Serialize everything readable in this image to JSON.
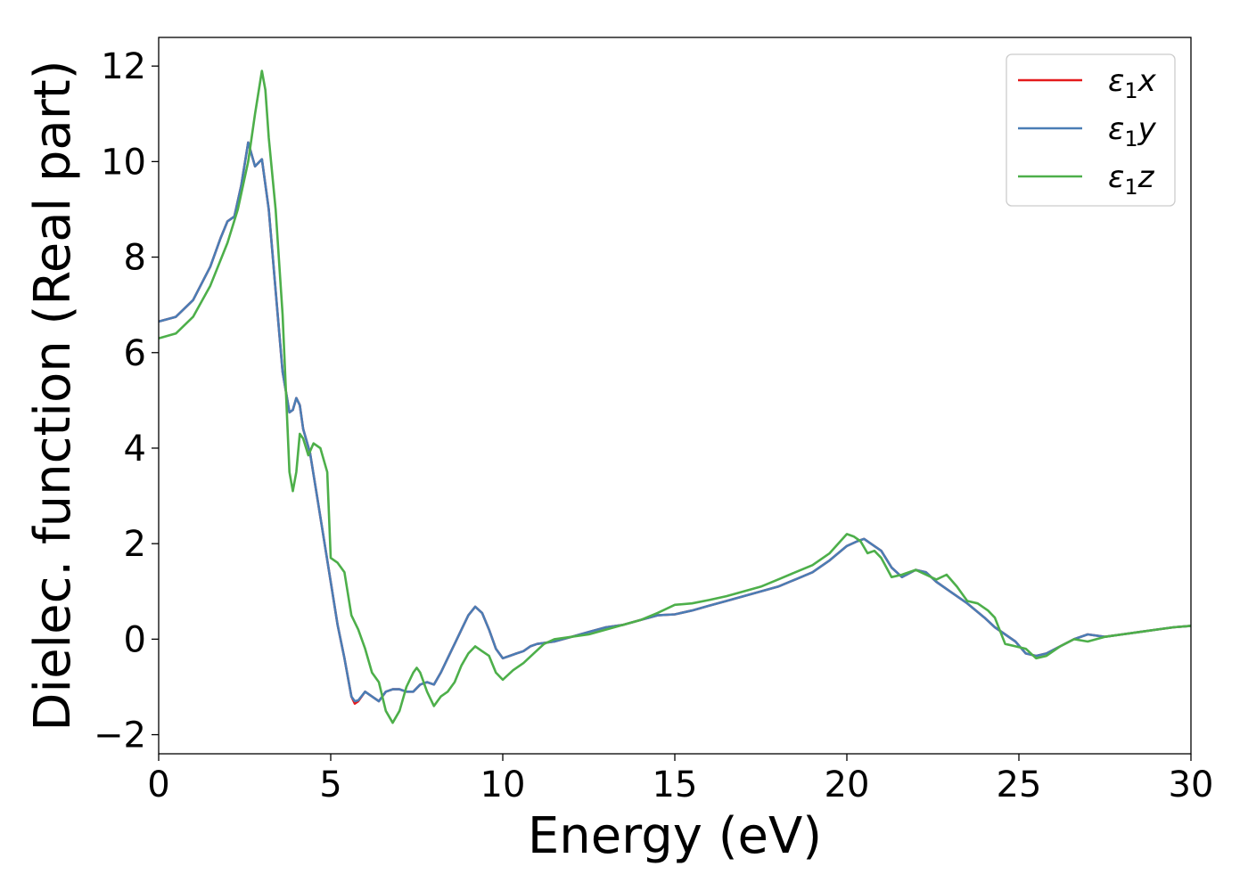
{
  "chart_data": {
    "type": "line",
    "title": "",
    "xlabel": "Energy (eV)",
    "ylabel": "Dielec. function (Real part)",
    "xlim": [
      0,
      30
    ],
    "ylim": [
      -2.4,
      12.6
    ],
    "xticks": [
      0,
      5,
      10,
      15,
      20,
      25,
      30
    ],
    "yticks": [
      -2,
      0,
      2,
      4,
      6,
      8,
      10,
      12
    ],
    "xtick_labels": [
      "0",
      "5",
      "10",
      "15",
      "20",
      "25",
      "30"
    ],
    "ytick_labels": [
      "−2",
      "0",
      "2",
      "4",
      "6",
      "8",
      "10",
      "12"
    ],
    "grid": false,
    "legend_position": "top-right",
    "series": [
      {
        "name": "ε₁x",
        "legend": {
          "sym": "ε",
          "sub": "1",
          "var": "x"
        },
        "color": "#e41a1c",
        "x": [
          0,
          0.5,
          1.0,
          1.5,
          1.8,
          2.0,
          2.2,
          2.4,
          2.6,
          2.8,
          3.0,
          3.2,
          3.4,
          3.6,
          3.8,
          3.9,
          4.0,
          4.1,
          4.2,
          4.4,
          4.6,
          4.8,
          5.0,
          5.2,
          5.4,
          5.6,
          5.7,
          5.8,
          6.0,
          6.2,
          6.4,
          6.6,
          6.8,
          7.0,
          7.2,
          7.4,
          7.6,
          7.8,
          8.0,
          8.2,
          8.4,
          8.6,
          8.8,
          9.0,
          9.2,
          9.4,
          9.6,
          9.8,
          10.0,
          10.2,
          10.4,
          10.6,
          10.8,
          11.0,
          11.5,
          12.0,
          12.5,
          13.0,
          13.5,
          14.0,
          14.5,
          15.0,
          15.5,
          16.0,
          16.5,
          17.0,
          17.5,
          18.0,
          18.5,
          19.0,
          19.5,
          20.0,
          20.3,
          20.5,
          20.7,
          21.0,
          21.3,
          21.6,
          22.0,
          22.3,
          22.6,
          23.0,
          23.5,
          24.0,
          24.3,
          24.6,
          24.9,
          25.2,
          25.5,
          25.8,
          26.2,
          26.6,
          27.0,
          27.5,
          28.0,
          28.5,
          29.0,
          29.5,
          30.0
        ],
        "y": [
          6.65,
          6.75,
          7.1,
          7.8,
          8.4,
          8.75,
          8.85,
          9.5,
          10.4,
          9.9,
          10.05,
          9.0,
          7.3,
          5.6,
          4.75,
          4.8,
          5.05,
          4.9,
          4.4,
          3.9,
          3.0,
          2.1,
          1.2,
          0.3,
          -0.4,
          -1.2,
          -1.35,
          -1.3,
          -1.1,
          -1.2,
          -1.3,
          -1.1,
          -1.05,
          -1.05,
          -1.1,
          -1.1,
          -0.95,
          -0.9,
          -0.95,
          -0.7,
          -0.4,
          -0.1,
          0.2,
          0.5,
          0.68,
          0.55,
          0.2,
          -0.2,
          -0.4,
          -0.35,
          -0.3,
          -0.25,
          -0.15,
          -0.1,
          -0.05,
          0.05,
          0.15,
          0.25,
          0.3,
          0.4,
          0.5,
          0.52,
          0.6,
          0.7,
          0.8,
          0.9,
          1.0,
          1.1,
          1.25,
          1.4,
          1.65,
          1.95,
          2.05,
          2.1,
          2.0,
          1.85,
          1.5,
          1.3,
          1.45,
          1.4,
          1.2,
          1.0,
          0.75,
          0.45,
          0.25,
          0.1,
          -0.05,
          -0.3,
          -0.35,
          -0.3,
          -0.15,
          0.0,
          0.1,
          0.05,
          0.1,
          0.15,
          0.2,
          0.25,
          0.28
        ]
      },
      {
        "name": "ε₁y",
        "legend": {
          "sym": "ε",
          "sub": "1",
          "var": "y"
        },
        "color": "#4a7db5",
        "x": [
          0,
          0.5,
          1.0,
          1.5,
          1.8,
          2.0,
          2.2,
          2.4,
          2.6,
          2.8,
          3.0,
          3.2,
          3.4,
          3.6,
          3.8,
          3.9,
          4.0,
          4.1,
          4.2,
          4.4,
          4.6,
          4.8,
          5.0,
          5.2,
          5.4,
          5.6,
          5.7,
          5.8,
          6.0,
          6.2,
          6.4,
          6.6,
          6.8,
          7.0,
          7.2,
          7.4,
          7.6,
          7.8,
          8.0,
          8.2,
          8.4,
          8.6,
          8.8,
          9.0,
          9.2,
          9.4,
          9.6,
          9.8,
          10.0,
          10.2,
          10.4,
          10.6,
          10.8,
          11.0,
          11.5,
          12.0,
          12.5,
          13.0,
          13.5,
          14.0,
          14.5,
          15.0,
          15.5,
          16.0,
          16.5,
          17.0,
          17.5,
          18.0,
          18.5,
          19.0,
          19.5,
          20.0,
          20.3,
          20.5,
          20.7,
          21.0,
          21.3,
          21.6,
          22.0,
          22.3,
          22.6,
          23.0,
          23.5,
          24.0,
          24.3,
          24.6,
          24.9,
          25.2,
          25.5,
          25.8,
          26.2,
          26.6,
          27.0,
          27.5,
          28.0,
          28.5,
          29.0,
          29.5,
          30.0
        ],
        "y": [
          6.65,
          6.75,
          7.1,
          7.8,
          8.4,
          8.75,
          8.85,
          9.5,
          10.4,
          9.9,
          10.05,
          9.0,
          7.3,
          5.6,
          4.75,
          4.8,
          5.05,
          4.9,
          4.4,
          3.9,
          3.0,
          2.1,
          1.2,
          0.3,
          -0.4,
          -1.2,
          -1.3,
          -1.28,
          -1.1,
          -1.2,
          -1.3,
          -1.1,
          -1.05,
          -1.05,
          -1.1,
          -1.1,
          -0.95,
          -0.9,
          -0.95,
          -0.7,
          -0.4,
          -0.1,
          0.2,
          0.5,
          0.68,
          0.55,
          0.2,
          -0.2,
          -0.4,
          -0.35,
          -0.3,
          -0.25,
          -0.15,
          -0.1,
          -0.05,
          0.05,
          0.15,
          0.25,
          0.3,
          0.4,
          0.5,
          0.52,
          0.6,
          0.7,
          0.8,
          0.9,
          1.0,
          1.1,
          1.25,
          1.4,
          1.65,
          1.95,
          2.05,
          2.1,
          2.0,
          1.85,
          1.5,
          1.3,
          1.45,
          1.4,
          1.2,
          1.0,
          0.75,
          0.45,
          0.25,
          0.1,
          -0.05,
          -0.3,
          -0.35,
          -0.3,
          -0.15,
          0.0,
          0.1,
          0.05,
          0.1,
          0.15,
          0.2,
          0.25,
          0.28
        ]
      },
      {
        "name": "ε₁z",
        "legend": {
          "sym": "ε",
          "sub": "1",
          "var": "z"
        },
        "color": "#4daf4a",
        "x": [
          0,
          0.5,
          1.0,
          1.5,
          2.0,
          2.3,
          2.6,
          2.8,
          3.0,
          3.1,
          3.2,
          3.4,
          3.6,
          3.8,
          3.9,
          4.0,
          4.1,
          4.2,
          4.35,
          4.5,
          4.7,
          4.9,
          5.0,
          5.2,
          5.4,
          5.6,
          5.8,
          6.0,
          6.2,
          6.4,
          6.6,
          6.8,
          7.0,
          7.2,
          7.4,
          7.5,
          7.6,
          7.8,
          8.0,
          8.2,
          8.4,
          8.6,
          8.8,
          9.0,
          9.2,
          9.4,
          9.6,
          9.8,
          10.0,
          10.3,
          10.6,
          10.9,
          11.2,
          11.5,
          12.0,
          12.5,
          13.0,
          13.5,
          14.0,
          14.5,
          15.0,
          15.5,
          16.0,
          16.5,
          17.0,
          17.5,
          18.0,
          18.5,
          19.0,
          19.5,
          20.0,
          20.2,
          20.4,
          20.6,
          20.8,
          21.0,
          21.3,
          21.6,
          22.0,
          22.3,
          22.6,
          22.9,
          23.2,
          23.5,
          23.8,
          24.1,
          24.3,
          24.6,
          24.9,
          25.2,
          25.5,
          25.8,
          26.2,
          26.6,
          27.0,
          27.5,
          28.0,
          28.5,
          29.0,
          29.5,
          30.0
        ],
        "y": [
          6.3,
          6.4,
          6.75,
          7.4,
          8.3,
          9.0,
          10.0,
          11.0,
          11.9,
          11.5,
          10.5,
          9.0,
          6.8,
          3.5,
          3.1,
          3.5,
          4.3,
          4.2,
          3.85,
          4.1,
          4.0,
          3.5,
          1.7,
          1.6,
          1.4,
          0.5,
          0.2,
          -0.2,
          -0.7,
          -0.9,
          -1.5,
          -1.75,
          -1.5,
          -1.0,
          -0.7,
          -0.6,
          -0.7,
          -1.1,
          -1.4,
          -1.2,
          -1.1,
          -0.9,
          -0.55,
          -0.3,
          -0.15,
          -0.25,
          -0.35,
          -0.7,
          -0.85,
          -0.65,
          -0.5,
          -0.3,
          -0.1,
          0.0,
          0.05,
          0.1,
          0.2,
          0.3,
          0.4,
          0.55,
          0.72,
          0.75,
          0.82,
          0.9,
          1.0,
          1.1,
          1.25,
          1.4,
          1.55,
          1.8,
          2.2,
          2.15,
          2.05,
          1.8,
          1.85,
          1.7,
          1.3,
          1.35,
          1.45,
          1.35,
          1.25,
          1.35,
          1.1,
          0.8,
          0.75,
          0.6,
          0.45,
          -0.1,
          -0.15,
          -0.2,
          -0.4,
          -0.35,
          -0.15,
          0.0,
          -0.05,
          0.05,
          0.1,
          0.15,
          0.2,
          0.25,
          0.28
        ]
      }
    ]
  }
}
